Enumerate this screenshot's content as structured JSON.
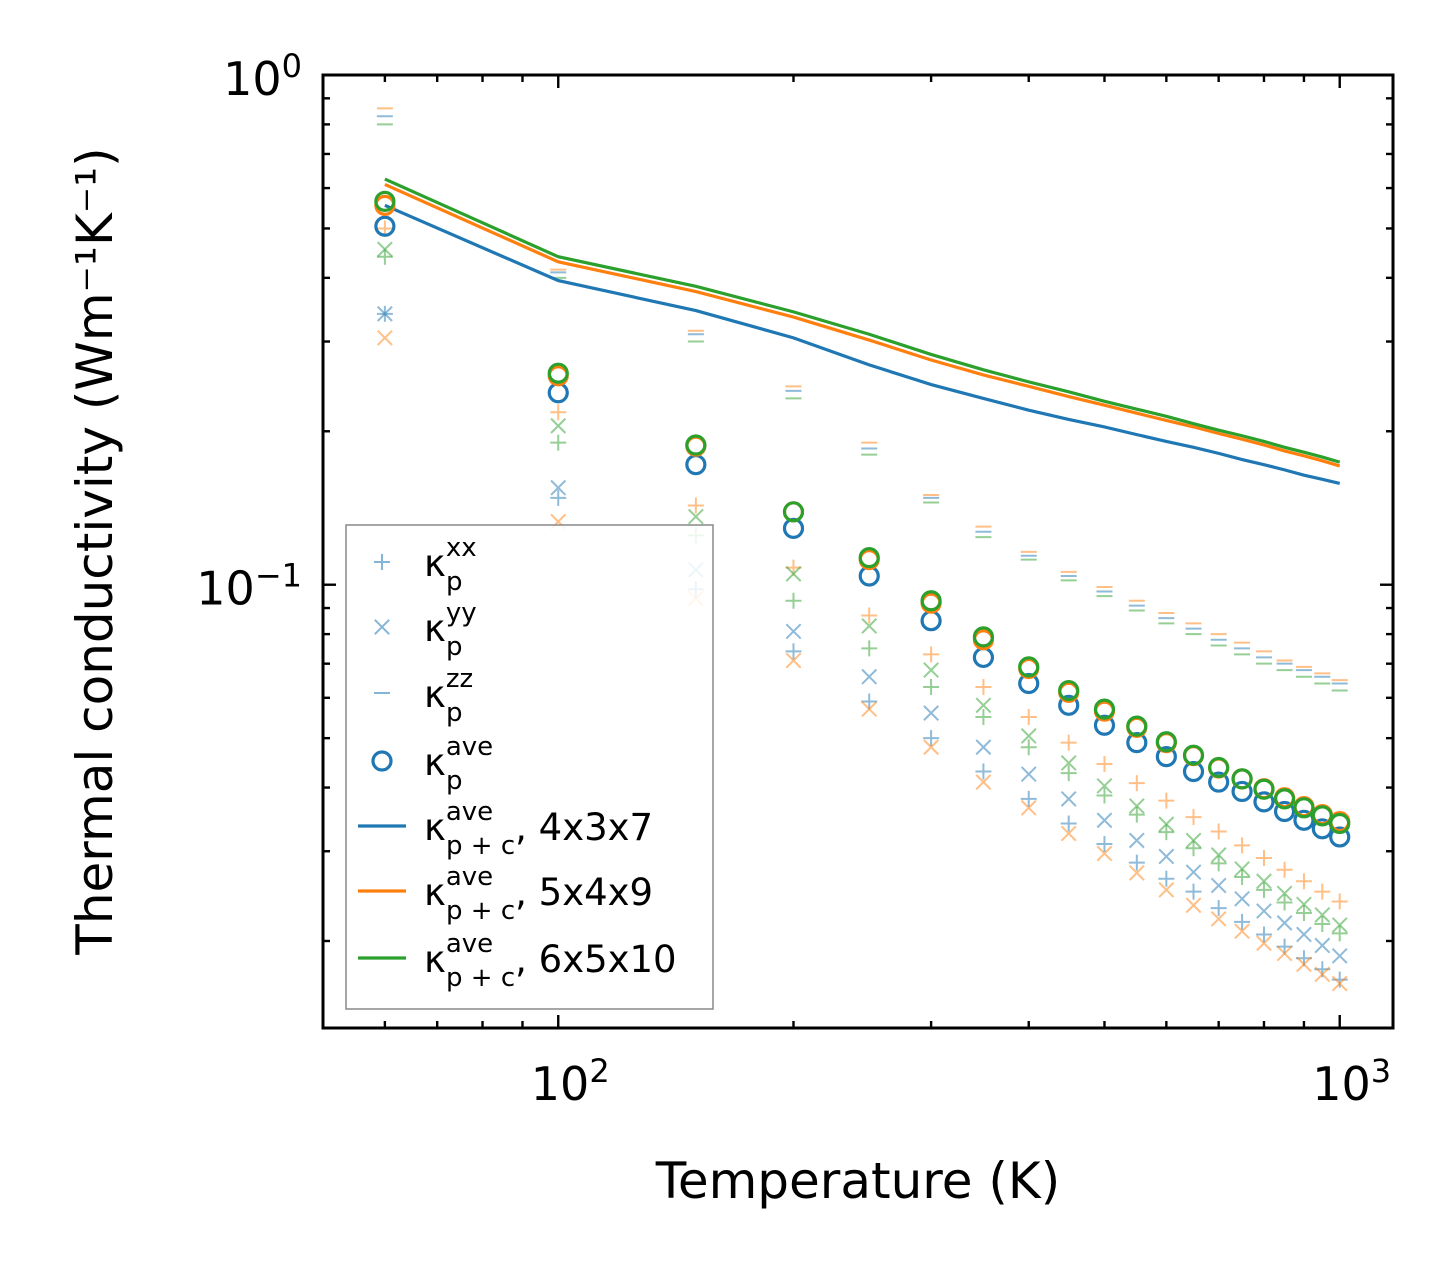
{
  "chart_data": {
    "type": "scatter",
    "xscale": "log",
    "yscale": "log",
    "xlabel": "Temperature (K)",
    "ylabel": "Thermal conductivity (Wm⁻¹K⁻¹)",
    "xlim": [
      50,
      1170
    ],
    "ylim": [
      0.0135,
      1.0
    ],
    "xticks": [
      {
        "value": 100,
        "label": "10",
        "exp": "2"
      },
      {
        "value": 1000,
        "label": "10",
        "exp": "3"
      }
    ],
    "yticks": [
      {
        "value": 0.1,
        "label": "10",
        "exp": "−1"
      },
      {
        "value": 1.0,
        "label": "10",
        "exp": "0"
      }
    ],
    "colors": {
      "blue": "#1f77b4",
      "orange": "#ff7f0e",
      "green": "#2ca02c"
    },
    "temperatures": [
      60,
      100,
      150,
      200,
      250,
      300,
      350,
      400,
      450,
      500,
      550,
      600,
      650,
      700,
      750,
      800,
      850,
      900,
      950,
      1000
    ],
    "series": [
      {
        "name": "4x3x7",
        "color": "#1f77b4",
        "kxx": [
          0.34,
          0.148,
          0.098,
          0.074,
          0.059,
          0.05,
          0.043,
          0.038,
          0.034,
          0.031,
          0.0285,
          0.0265,
          0.025,
          0.0232,
          0.0218,
          0.0206,
          0.0195,
          0.0185,
          0.0176,
          0.0168
        ],
        "kyy": [
          0.34,
          0.155,
          0.107,
          0.081,
          0.066,
          0.056,
          0.048,
          0.0425,
          0.038,
          0.0345,
          0.0315,
          0.0293,
          0.0273,
          0.0257,
          0.0242,
          0.0229,
          0.0217,
          0.0206,
          0.0196,
          0.0187
        ],
        "kzz": [
          0.83,
          0.41,
          0.31,
          0.24,
          0.185,
          0.148,
          0.127,
          0.114,
          0.104,
          0.097,
          0.091,
          0.086,
          0.082,
          0.078,
          0.075,
          0.072,
          0.07,
          0.068,
          0.066,
          0.064
        ],
        "kave": [
          0.505,
          0.238,
          0.172,
          0.129,
          0.104,
          0.085,
          0.072,
          0.064,
          0.058,
          0.053,
          0.049,
          0.046,
          0.043,
          0.041,
          0.0393,
          0.0375,
          0.0359,
          0.0345,
          0.0332,
          0.032
        ],
        "line": [
          0.555,
          0.395,
          0.345,
          0.305,
          0.27,
          0.247,
          0.232,
          0.22,
          0.211,
          0.204,
          0.197,
          0.191,
          0.186,
          0.181,
          0.176,
          0.172,
          0.168,
          0.164,
          0.161,
          0.158
        ]
      },
      {
        "name": "5x4x9",
        "color": "#ff7f0e",
        "kxx": [
          0.5,
          0.218,
          0.143,
          0.108,
          0.087,
          0.073,
          0.063,
          0.055,
          0.049,
          0.0445,
          0.0408,
          0.0377,
          0.035,
          0.0328,
          0.0308,
          0.0291,
          0.0276,
          0.0262,
          0.025,
          0.0239
        ],
        "kyy": [
          0.305,
          0.133,
          0.094,
          0.071,
          0.057,
          0.048,
          0.041,
          0.0365,
          0.0325,
          0.0297,
          0.0272,
          0.0252,
          0.0235,
          0.0221,
          0.0209,
          0.0198,
          0.0189,
          0.018,
          0.0172,
          0.0165
        ],
        "kzz": [
          0.86,
          0.415,
          0.315,
          0.245,
          0.19,
          0.15,
          0.13,
          0.116,
          0.106,
          0.099,
          0.093,
          0.088,
          0.084,
          0.08,
          0.077,
          0.074,
          0.071,
          0.069,
          0.067,
          0.065
        ],
        "kave": [
          0.555,
          0.257,
          0.187,
          0.139,
          0.112,
          0.092,
          0.078,
          0.0685,
          0.0615,
          0.0565,
          0.0525,
          0.049,
          0.0462,
          0.0437,
          0.0416,
          0.0398,
          0.0382,
          0.0367,
          0.0354,
          0.0343
        ],
        "line": [
          0.61,
          0.43,
          0.376,
          0.335,
          0.302,
          0.276,
          0.258,
          0.245,
          0.234,
          0.225,
          0.217,
          0.21,
          0.204,
          0.198,
          0.193,
          0.188,
          0.183,
          0.179,
          0.175,
          0.171
        ]
      },
      {
        "name": "6x5x10",
        "color": "#2ca02c",
        "kxx": [
          0.44,
          0.19,
          0.125,
          0.093,
          0.075,
          0.063,
          0.055,
          0.048,
          0.0427,
          0.0386,
          0.0354,
          0.0327,
          0.0304,
          0.0284,
          0.0267,
          0.0252,
          0.0238,
          0.0227,
          0.0216,
          0.0207
        ],
        "kyy": [
          0.455,
          0.205,
          0.136,
          0.105,
          0.083,
          0.068,
          0.058,
          0.0505,
          0.0447,
          0.0403,
          0.0368,
          0.0339,
          0.0315,
          0.0295,
          0.0277,
          0.0262,
          0.0248,
          0.0236,
          0.0225,
          0.0215
        ],
        "kzz": [
          0.8,
          0.4,
          0.3,
          0.232,
          0.18,
          0.145,
          0.124,
          0.112,
          0.102,
          0.095,
          0.089,
          0.084,
          0.08,
          0.076,
          0.073,
          0.07,
          0.068,
          0.066,
          0.064,
          0.062
        ],
        "kave": [
          0.565,
          0.26,
          0.188,
          0.139,
          0.113,
          0.093,
          0.079,
          0.069,
          0.062,
          0.057,
          0.0528,
          0.0492,
          0.0463,
          0.0438,
          0.0416,
          0.0397,
          0.038,
          0.0365,
          0.0352,
          0.034
        ],
        "line": [
          0.625,
          0.44,
          0.385,
          0.343,
          0.31,
          0.283,
          0.264,
          0.25,
          0.239,
          0.229,
          0.221,
          0.214,
          0.207,
          0.201,
          0.196,
          0.191,
          0.186,
          0.182,
          0.178,
          0.174
        ]
      }
    ],
    "legend": {
      "position": "lower-left",
      "entries": [
        {
          "kind": "plus",
          "base": "κ",
          "sup": "xx",
          "sub": "p",
          "suffix": ""
        },
        {
          "kind": "x",
          "base": "κ",
          "sup": "yy",
          "sub": "p",
          "suffix": ""
        },
        {
          "kind": "dash",
          "base": "κ",
          "sup": "zz",
          "sub": "p",
          "suffix": ""
        },
        {
          "kind": "circle",
          "base": "κ",
          "sup": "ave",
          "sub": "p",
          "suffix": ""
        },
        {
          "kind": "line",
          "base": "κ",
          "sup": "ave",
          "sub": "p + c",
          "suffix": ", 4x3x7",
          "color": "#1f77b4"
        },
        {
          "kind": "line",
          "base": "κ",
          "sup": "ave",
          "sub": "p + c",
          "suffix": ", 5x4x9",
          "color": "#ff7f0e"
        },
        {
          "kind": "line",
          "base": "κ",
          "sup": "ave",
          "sub": "p + c",
          "suffix": ", 6x5x10",
          "color": "#2ca02c"
        }
      ]
    }
  }
}
